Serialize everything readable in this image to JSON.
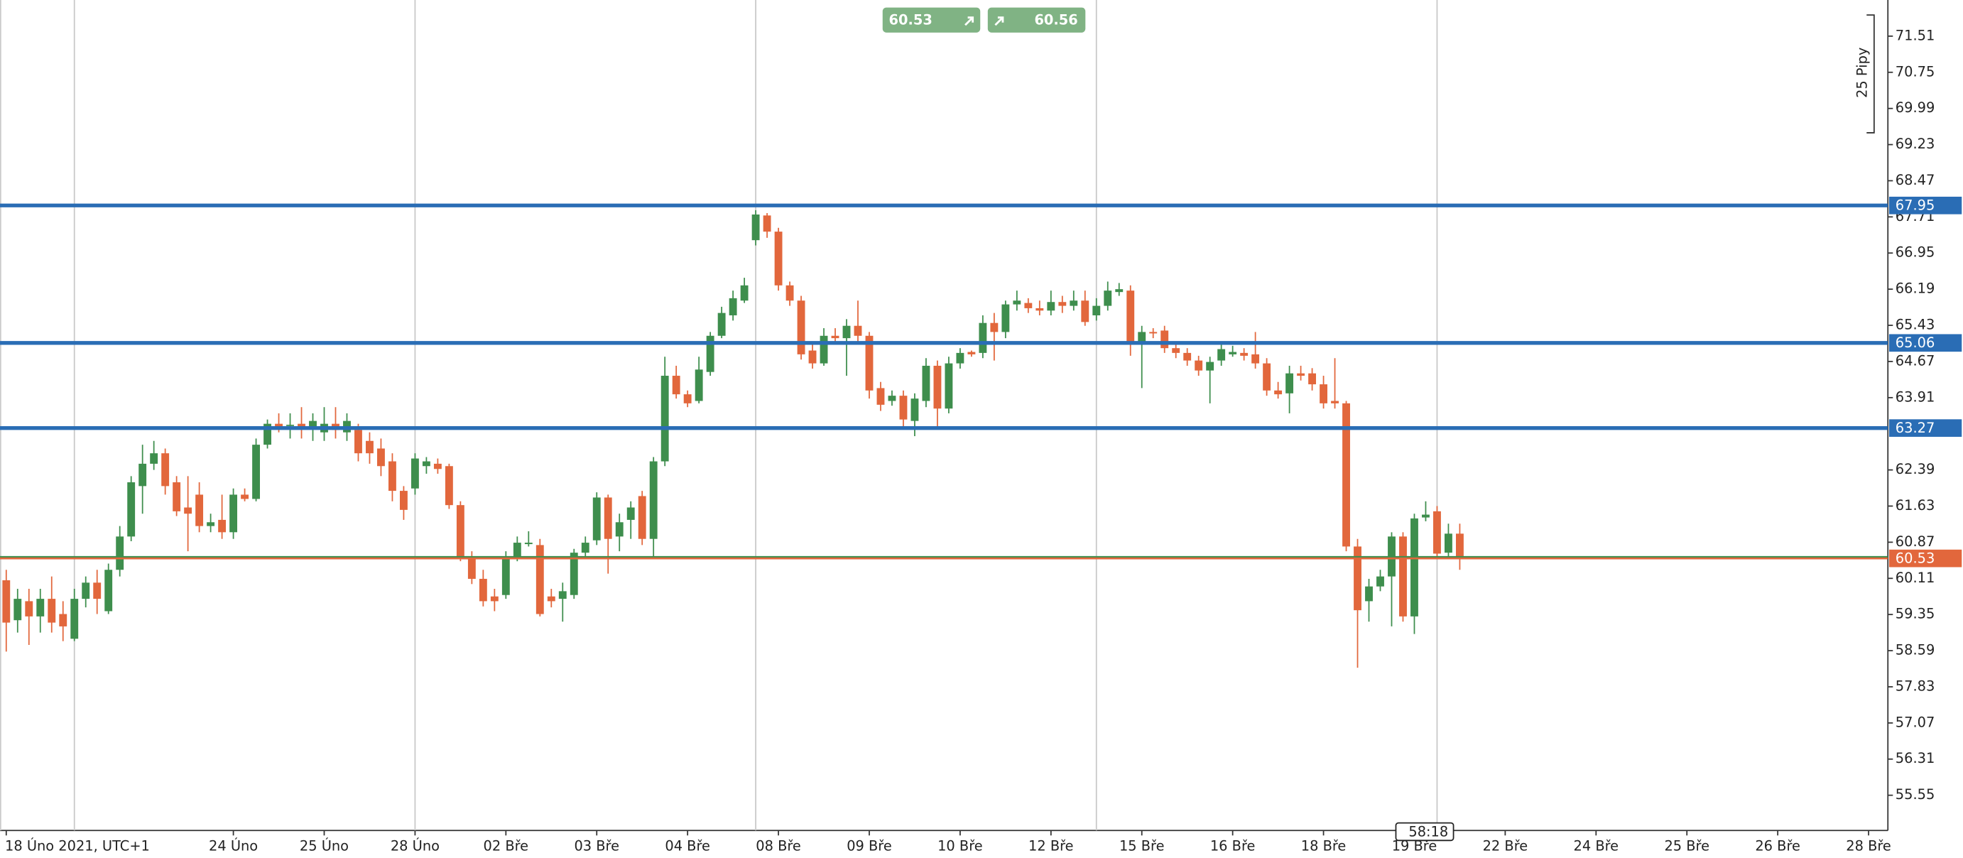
{
  "chart_data": {
    "type": "candlestick",
    "up_color": "#3e8e4d",
    "down_color": "#e2673c",
    "open": [
      60.07,
      59.23,
      59.63,
      59.31,
      59.68,
      59.36,
      58.84,
      59.68,
      60.02,
      59.42,
      60.29,
      60.99,
      62.05,
      62.52,
      62.74,
      62.13,
      61.6,
      61.87,
      61.21,
      61.34,
      61.08,
      61.87,
      61.78,
      62.92,
      63.36,
      63.34,
      63.36,
      63.26,
      63.18,
      63.36,
      63.18,
      63.23,
      63.0,
      62.84,
      62.57,
      61.95,
      62.0,
      62.47,
      62.52,
      62.47,
      61.65,
      60.57,
      60.1,
      59.73,
      59.76,
      60.52,
      60.83,
      60.81,
      59.73,
      59.68,
      59.76,
      60.65,
      60.91,
      61.81,
      60.99,
      61.34,
      61.84,
      60.94,
      62.57,
      64.37,
      63.98,
      63.84,
      64.45,
      65.21,
      65.64,
      65.95,
      67.22,
      67.74,
      67.4,
      66.27,
      65.95,
      64.9,
      64.63,
      65.21,
      65.16,
      65.42,
      65.21,
      64.11,
      63.84,
      63.95,
      63.42,
      63.84,
      64.58,
      63.68,
      64.63,
      64.87,
      64.85,
      65.48,
      65.29,
      65.87,
      65.9,
      65.79,
      65.74,
      65.92,
      65.84,
      65.95,
      65.64,
      65.84,
      66.13,
      66.16,
      65.08,
      65.29,
      65.32,
      64.95,
      64.85,
      64.69,
      64.48,
      64.69,
      64.82,
      64.85,
      64.82,
      64.63,
      64.06,
      64.0,
      64.42,
      64.42,
      64.19,
      63.84,
      63.79,
      60.78,
      59.63,
      59.94,
      60.15,
      60.99,
      59.31,
      61.39,
      61.52,
      60.65,
      61.05
    ],
    "high": [
      60.29,
      59.89,
      59.89,
      59.89,
      60.15,
      59.63,
      59.89,
      60.15,
      60.29,
      60.42,
      61.21,
      62.26,
      62.92,
      63.0,
      62.84,
      62.26,
      62.26,
      62.13,
      61.47,
      61.87,
      62.0,
      62.0,
      63.05,
      63.45,
      63.58,
      63.58,
      63.71,
      63.58,
      63.71,
      63.71,
      63.58,
      63.36,
      63.18,
      63.05,
      62.74,
      62.05,
      62.74,
      62.66,
      62.63,
      62.52,
      61.73,
      60.68,
      60.29,
      59.89,
      60.68,
      60.99,
      61.1,
      60.94,
      59.89,
      60.02,
      60.73,
      60.99,
      61.92,
      61.87,
      61.47,
      61.73,
      61.95,
      62.66,
      64.77,
      64.58,
      64.06,
      64.77,
      65.29,
      65.82,
      66.16,
      66.43,
      67.85,
      67.79,
      67.48,
      66.35,
      66.05,
      65.03,
      65.37,
      65.37,
      65.56,
      65.95,
      65.29,
      64.24,
      64.06,
      64.06,
      64.0,
      64.74,
      64.69,
      64.77,
      64.95,
      64.9,
      65.64,
      65.69,
      65.95,
      66.16,
      66.0,
      65.95,
      66.16,
      66.05,
      66.16,
      66.16,
      66.0,
      66.35,
      66.32,
      66.27,
      65.42,
      65.37,
      65.42,
      65.03,
      64.95,
      64.79,
      64.77,
      65.03,
      65.0,
      64.95,
      65.29,
      64.74,
      64.24,
      64.58,
      64.58,
      64.53,
      64.37,
      64.74,
      63.84,
      60.94,
      60.1,
      60.29,
      61.08,
      61.08,
      61.47,
      61.73,
      61.63,
      61.26,
      61.26
    ],
    "low": [
      58.57,
      58.97,
      58.71,
      58.97,
      58.97,
      58.79,
      58.79,
      59.5,
      59.36,
      59.36,
      60.15,
      60.89,
      61.47,
      62.39,
      61.87,
      61.42,
      60.68,
      61.08,
      61.08,
      60.94,
      60.94,
      61.73,
      61.73,
      62.84,
      63.18,
      63.05,
      63.05,
      63.0,
      63.0,
      63.05,
      63.0,
      62.57,
      62.52,
      62.26,
      61.73,
      61.34,
      61.87,
      62.31,
      62.31,
      61.57,
      60.47,
      59.99,
      59.52,
      59.42,
      59.68,
      60.47,
      60.78,
      59.31,
      59.5,
      59.2,
      59.68,
      60.55,
      60.81,
      60.21,
      60.68,
      60.94,
      60.81,
      60.52,
      62.47,
      63.89,
      63.71,
      63.79,
      64.37,
      65.16,
      65.53,
      65.9,
      67.11,
      67.27,
      66.16,
      65.84,
      64.71,
      64.52,
      64.58,
      65.05,
      64.37,
      65.03,
      63.89,
      63.63,
      63.74,
      63.31,
      63.1,
      63.71,
      63.31,
      63.58,
      64.52,
      64.77,
      64.74,
      64.69,
      65.16,
      65.74,
      65.69,
      65.64,
      65.64,
      65.69,
      65.74,
      65.42,
      65.53,
      65.74,
      66.05,
      64.79,
      64.11,
      65.16,
      64.85,
      64.74,
      64.58,
      64.37,
      63.79,
      64.58,
      64.77,
      64.69,
      64.52,
      63.95,
      63.89,
      63.58,
      64.27,
      64.06,
      63.68,
      63.68,
      60.68,
      58.23,
      59.2,
      59.84,
      59.1,
      59.2,
      58.94,
      61.31,
      60.52,
      60.57,
      60.29
    ],
    "close": [
      59.18,
      59.68,
      59.31,
      59.68,
      59.18,
      59.1,
      59.68,
      60.02,
      59.68,
      60.29,
      60.99,
      62.13,
      62.52,
      62.74,
      62.05,
      61.52,
      61.47,
      61.21,
      61.29,
      61.08,
      61.87,
      61.78,
      62.92,
      63.36,
      63.31,
      63.34,
      63.31,
      63.42,
      63.36,
      63.23,
      63.42,
      62.74,
      62.74,
      62.47,
      61.95,
      61.55,
      62.63,
      62.57,
      62.41,
      61.65,
      60.57,
      60.1,
      59.63,
      59.63,
      60.52,
      60.86,
      60.86,
      59.36,
      59.63,
      59.84,
      60.65,
      60.86,
      61.81,
      60.94,
      61.29,
      61.6,
      60.94,
      62.57,
      64.37,
      63.98,
      63.79,
      64.5,
      65.21,
      65.69,
      66.0,
      66.27,
      67.76,
      67.4,
      66.27,
      65.95,
      64.82,
      64.63,
      65.21,
      65.16,
      65.42,
      65.21,
      64.06,
      63.76,
      63.95,
      63.45,
      63.89,
      64.58,
      63.68,
      64.63,
      64.85,
      64.82,
      65.48,
      65.29,
      65.87,
      65.95,
      65.79,
      65.74,
      65.92,
      65.84,
      65.95,
      65.5,
      65.84,
      66.16,
      66.19,
      65.08,
      65.29,
      65.26,
      64.95,
      64.85,
      64.69,
      64.48,
      64.66,
      64.93,
      64.87,
      64.79,
      64.63,
      64.06,
      63.98,
      64.42,
      64.37,
      64.19,
      63.79,
      63.79,
      60.78,
      59.44,
      59.94,
      60.15,
      60.99,
      59.31,
      61.37,
      61.45,
      60.63,
      61.05,
      60.53
    ],
    "xlim": [
      -0.55,
      165.7
    ],
    "xticks": [
      {
        "value": 0,
        "label": "18 Úno 2021, UTC+1"
      },
      {
        "value": 20,
        "label": "24 Úno"
      },
      {
        "value": 28,
        "label": "25 Úno"
      },
      {
        "value": 36,
        "label": "28 Úno"
      },
      {
        "value": 44,
        "label": "02 Bře"
      },
      {
        "value": 52,
        "label": "03 Bře"
      },
      {
        "value": 60,
        "label": "04 Bře"
      },
      {
        "value": 68,
        "label": "08 Bře"
      },
      {
        "value": 76,
        "label": "09 Bře"
      },
      {
        "value": 84,
        "label": "10 Bře"
      },
      {
        "value": 92,
        "label": "12 Bře"
      },
      {
        "value": 100,
        "label": "15 Bře"
      },
      {
        "value": 108,
        "label": "16 Bře"
      },
      {
        "value": 116,
        "label": "18 Bře"
      },
      {
        "value": 124,
        "label": "19 Bře"
      },
      {
        "value": 132,
        "label": "22 Bře"
      },
      {
        "value": 140,
        "label": "24 Bře"
      },
      {
        "value": 148,
        "label": "25 Bře"
      },
      {
        "value": 156,
        "label": "26 Bře"
      },
      {
        "value": 164,
        "label": "28 Bře"
      }
    ],
    "xgrid": [
      6,
      36,
      66,
      96,
      126
    ],
    "ylim": [
      54.81,
      72.27
    ],
    "yticks": [
      71.51,
      70.75,
      69.99,
      69.23,
      68.47,
      67.71,
      66.95,
      66.19,
      65.43,
      64.67,
      63.91,
      62.39,
      61.63,
      60.87,
      60.11,
      59.35,
      58.59,
      57.83,
      57.07,
      56.31,
      55.55
    ],
    "price_lines": [
      {
        "value": 67.95,
        "color": "#2a6db5"
      },
      {
        "value": 65.06,
        "color": "#2a6db5"
      },
      {
        "value": 63.27,
        "color": "#2a6db5"
      },
      {
        "value": 60.56,
        "color": "#3e8e4d"
      },
      {
        "value": 60.53,
        "color": "#e2673c"
      }
    ],
    "labeled_lines": [
      0,
      1,
      2,
      4
    ]
  },
  "buttons": {
    "sell": "60.53",
    "buy": "60.56"
  },
  "scale_label": "25 Pipy",
  "timer": "58:18"
}
